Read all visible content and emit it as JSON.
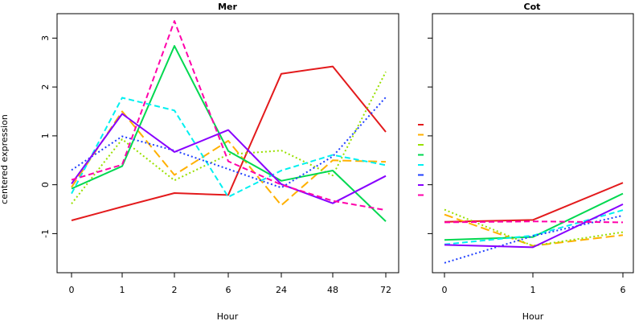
{
  "chart_data": {
    "type": "line",
    "ylabel": "centered expression",
    "panels": [
      {
        "title": "Mer",
        "xlabel": "Hour",
        "categories": [
          "0",
          "1",
          "2",
          "6",
          "24",
          "48",
          "72"
        ],
        "ylim": [
          -1.8,
          3.5
        ],
        "yticks": [
          -1,
          0,
          1,
          2,
          3
        ],
        "series": [
          {
            "color": "#e31a1c",
            "dash": "solid",
            "values": [
              -0.73,
              -0.45,
              -0.17,
              -0.21,
              2.27,
              2.42,
              1.08
            ]
          },
          {
            "color": "#ffb000",
            "dash": "longdash",
            "values": [
              -0.05,
              1.5,
              0.2,
              0.9,
              -0.42,
              0.5,
              0.47
            ]
          },
          {
            "color": "#99e000",
            "dash": "dotted",
            "values": [
              -0.39,
              0.93,
              0.09,
              0.62,
              0.7,
              0.19,
              2.31
            ]
          },
          {
            "color": "#00d850",
            "dash": "solid",
            "values": [
              -0.08,
              0.38,
              2.84,
              0.69,
              0.08,
              0.29,
              -0.75
            ]
          },
          {
            "color": "#00f0f0",
            "dash": "dashed",
            "values": [
              -0.18,
              1.78,
              1.52,
              -0.25,
              0.29,
              0.61,
              0.4
            ]
          },
          {
            "color": "#2040ff",
            "dash": "dotted",
            "values": [
              0.3,
              0.99,
              0.7,
              0.32,
              -0.06,
              0.58,
              1.79
            ]
          },
          {
            "color": "#8800ff",
            "dash": "solid",
            "values": [
              0.02,
              1.45,
              0.67,
              1.12,
              0.01,
              -0.38,
              0.18
            ]
          },
          {
            "color": "#ff00aa",
            "dash": "dashed",
            "values": [
              0.1,
              0.41,
              3.35,
              0.48,
              0.0,
              -0.33,
              -0.52
            ]
          }
        ]
      },
      {
        "title": "Cot",
        "xlabel": "Hour",
        "categories": [
          "0",
          "1",
          "6"
        ],
        "ylim": [
          -1.8,
          3.5
        ],
        "yticks": [
          -1,
          0,
          1,
          2,
          3
        ],
        "series": [
          {
            "color": "#e31a1c",
            "dash": "solid",
            "values": [
              -0.76,
              -0.72,
              0.04
            ]
          },
          {
            "color": "#ffb000",
            "dash": "longdash",
            "values": [
              -0.61,
              -1.25,
              -1.03
            ]
          },
          {
            "color": "#99e000",
            "dash": "dotted",
            "values": [
              -0.51,
              -1.25,
              -0.97
            ]
          },
          {
            "color": "#00d850",
            "dash": "solid",
            "values": [
              -1.13,
              -1.07,
              -0.18
            ]
          },
          {
            "color": "#00f0f0",
            "dash": "dashed",
            "values": [
              -1.22,
              -1.04,
              -0.52
            ]
          },
          {
            "color": "#2040ff",
            "dash": "dotted",
            "values": [
              -1.6,
              -1.05,
              -0.63
            ]
          },
          {
            "color": "#8800ff",
            "dash": "solid",
            "values": [
              -1.23,
              -1.28,
              -0.4
            ]
          },
          {
            "color": "#ff00aa",
            "dash": "dashed",
            "values": [
              -0.77,
              -0.75,
              -0.77
            ]
          }
        ]
      }
    ],
    "legend_key_colors": [
      "#e31a1c",
      "#ffb000",
      "#99e000",
      "#00d850",
      "#00f0f0",
      "#2040ff",
      "#8800ff",
      "#ff00aa"
    ]
  }
}
